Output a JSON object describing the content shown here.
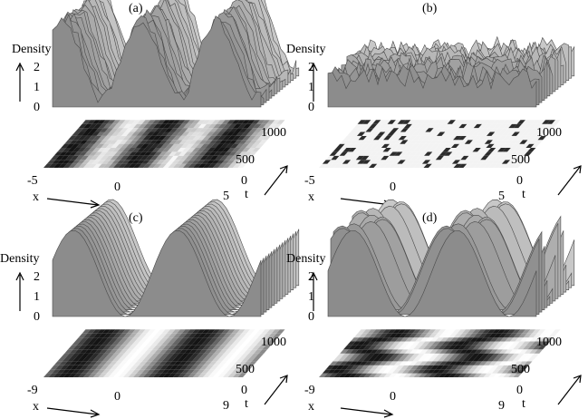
{
  "panels": [
    {
      "label": "(a)",
      "density_label": "Density",
      "density_ticks": [
        "2",
        "1",
        "0"
      ],
      "x_label": "x",
      "x_ticks": [
        "-5",
        "0",
        "5"
      ],
      "t_label": "t",
      "t_ticks": [
        "1000",
        "500",
        "0"
      ],
      "surface": "irregular-oscillating-ridges"
    },
    {
      "label": "(b)",
      "density_label": "Density",
      "density_ticks": [
        "2",
        "1",
        "0"
      ],
      "x_label": "x",
      "x_ticks": [
        "-5",
        "0",
        "5"
      ],
      "t_label": "t",
      "t_ticks": [
        "1000",
        "500",
        "0"
      ],
      "surface": "chaotic-flat"
    },
    {
      "label": "(c)",
      "density_label": "Density",
      "density_ticks": [
        "2",
        "1",
        "0"
      ],
      "x_label": "x",
      "x_ticks": [
        "-9",
        "0",
        "9"
      ],
      "t_label": "t",
      "t_ticks": [
        "1000",
        "500",
        "0"
      ],
      "surface": "smooth-stationary-ridges"
    },
    {
      "label": "(d)",
      "density_label": "Density",
      "density_ticks": [
        "2",
        "1",
        "0"
      ],
      "x_label": "x",
      "x_ticks": [
        "-9",
        "0",
        "9"
      ],
      "t_label": "t",
      "t_ticks": [
        "1000",
        "500",
        "0"
      ],
      "surface": "zigzag-ridges"
    }
  ]
}
